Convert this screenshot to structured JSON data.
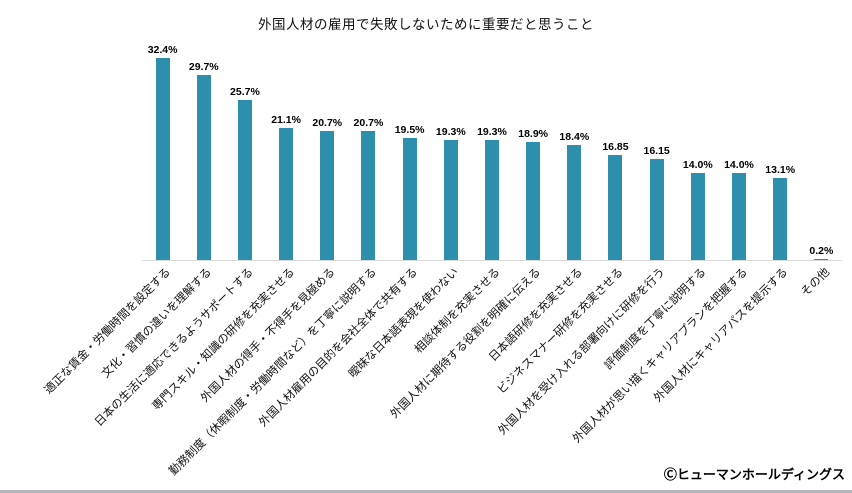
{
  "page": {
    "copyright": "Ⓒヒューマンホールディングス"
  },
  "chart_data": {
    "type": "bar",
    "title": "外国人材の雇用で失敗しないために重要だと思うこと",
    "categories": [
      "適正な賃金・労働時間を設定する",
      "文化・習慣の違いを理解する",
      "日本の生活に適応できるようサポートする",
      "専門スキル・知識の研修を充実させる",
      "外国人材の得手・不得手を見極める",
      "勤務制度（休暇制度・労働時間など）を丁寧に説明する",
      "外国人材雇用の目的を会社全体で共有する",
      "曖昧な日本語表現を使わない",
      "相談体制を充実させる",
      "外国人材に期待する役割を明確に伝える",
      "日本語研修を充実させる",
      "ビジネスマナー研修を充実させる",
      "外国人材を受け入れる部署向けに研修を行う",
      "評価制度を丁寧に説明する",
      "外国人材が思い描くキャリアプランを把握する",
      "外国人材にキャリアパスを提示する",
      "その他"
    ],
    "values": [
      32.4,
      29.7,
      25.7,
      21.1,
      20.7,
      20.7,
      19.5,
      19.3,
      19.3,
      18.9,
      18.4,
      16.85,
      16.15,
      14.0,
      14.0,
      13.1,
      0.2
    ],
    "value_labels": [
      "32.4%",
      "29.7%",
      "25.7%",
      "21.1%",
      "20.7%",
      "20.7%",
      "19.5%",
      "19.3%",
      "19.3%",
      "18.9%",
      "18.4%",
      "16.85",
      "16.15",
      "14.0%",
      "14.0%",
      "13.1%",
      "0.2%"
    ],
    "bar_color": "#2e8fad",
    "xlabel": "",
    "ylabel": "",
    "ylim": [
      0,
      35
    ],
    "grid": false,
    "legend": "none",
    "x_tick_rotation": 45
  }
}
